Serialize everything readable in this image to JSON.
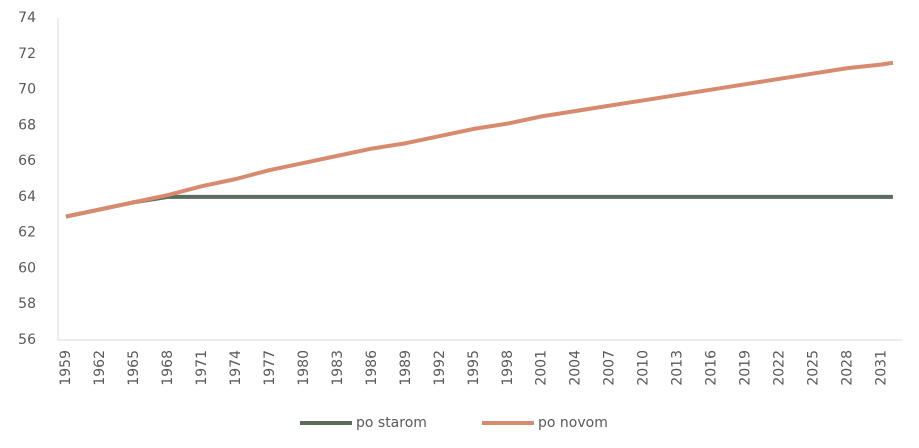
{
  "chart_data": {
    "type": "line",
    "x": [
      1959,
      1962,
      1965,
      1968,
      1971,
      1974,
      1977,
      1980,
      1983,
      1986,
      1989,
      1992,
      1995,
      1998,
      2001,
      2004,
      2007,
      2010,
      2013,
      2016,
      2019,
      2022,
      2025,
      2028,
      2031,
      2032
    ],
    "series": [
      {
        "name": "po starom",
        "color": "#5b6b5c",
        "values": [
          62.9,
          63.3,
          63.7,
          64.0,
          64,
          64,
          64,
          64,
          64,
          64,
          64,
          64,
          64,
          64,
          64,
          64,
          64,
          64,
          64,
          64,
          64,
          64,
          64,
          64,
          64,
          64
        ]
      },
      {
        "name": "po novom",
        "color": "#d88a6f",
        "values": [
          62.9,
          63.3,
          63.7,
          64.1,
          64.6,
          65.0,
          65.5,
          65.9,
          66.3,
          66.7,
          67.0,
          67.4,
          67.8,
          68.1,
          68.5,
          68.8,
          69.1,
          69.4,
          69.7,
          70.0,
          70.3,
          70.6,
          70.9,
          71.2,
          71.4,
          71.5
        ]
      }
    ],
    "xlim": [
      1958.3,
      2032.8
    ],
    "xticks": [
      1959,
      1962,
      1965,
      1968,
      1971,
      1974,
      1977,
      1980,
      1983,
      1986,
      1989,
      1992,
      1995,
      1998,
      2001,
      2004,
      2007,
      2010,
      2013,
      2016,
      2019,
      2022,
      2025,
      2028,
      2031
    ],
    "ylim": [
      56,
      74
    ],
    "yticks": [
      56,
      58,
      60,
      62,
      64,
      66,
      68,
      70,
      72,
      74
    ],
    "legend": "bottom"
  }
}
